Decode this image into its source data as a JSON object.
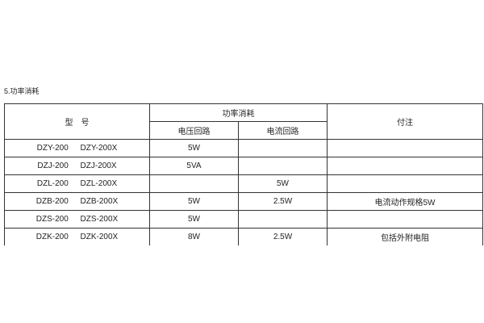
{
  "heading": "5.功率消耗",
  "table": {
    "headers": {
      "model": "型　号",
      "power": "功率消耗",
      "voltage_circuit": "电压回路",
      "current_circuit": "电流回路",
      "notes": "付注"
    },
    "rows": [
      {
        "model": "DZY-200 DZY-200X",
        "voltage": "5W",
        "current": "",
        "notes": ""
      },
      {
        "model": "DZJ-200 DZJ-200X",
        "voltage": "5VA",
        "current": "",
        "notes": ""
      },
      {
        "model": "DZL-200 DZL-200X",
        "voltage": "",
        "current": "5W",
        "notes": ""
      },
      {
        "model": "DZB-200 DZB-200X",
        "voltage": "5W",
        "current": "2.5W",
        "notes": "电流动作规格5W"
      },
      {
        "model": "DZS-200 DZS-200X",
        "voltage": "5W",
        "current": "",
        "notes": ""
      },
      {
        "model": "DZK-200 DZK-200X",
        "voltage": "8W",
        "current": "2.5W",
        "notes": "包括外附电阻"
      }
    ]
  }
}
